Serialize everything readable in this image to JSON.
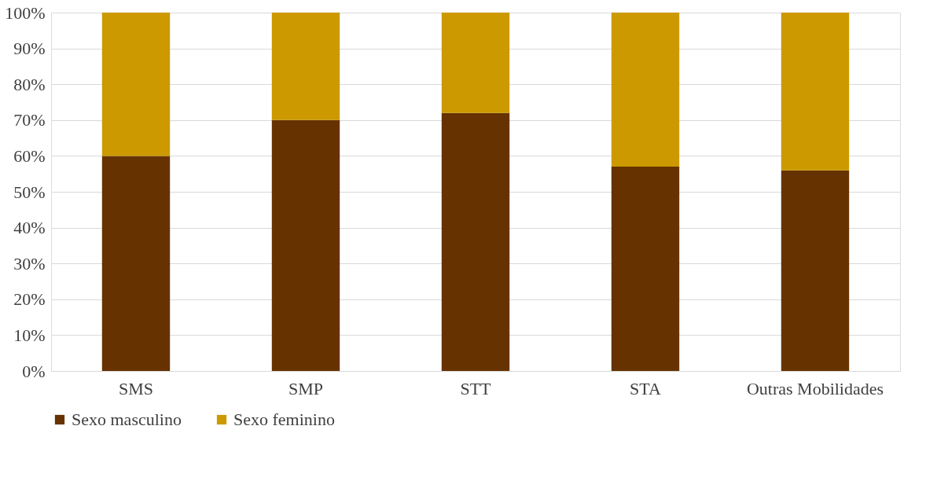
{
  "chart_data": {
    "type": "bar",
    "stacked": true,
    "categories": [
      "SMS",
      "SMP",
      "STT",
      "STA",
      "Outras Mobilidades"
    ],
    "series": [
      {
        "name": "Sexo masculino",
        "color": "#663300",
        "values": [
          60,
          70,
          72,
          57,
          56
        ]
      },
      {
        "name": "Sexo feminino",
        "color": "#cc9900",
        "values": [
          40,
          30,
          28,
          43,
          44
        ]
      }
    ],
    "ylim": [
      0,
      100
    ],
    "yticks": [
      {
        "value": 0,
        "label": "0%"
      },
      {
        "value": 10,
        "label": "10%"
      },
      {
        "value": 20,
        "label": "20%"
      },
      {
        "value": 30,
        "label": "30%"
      },
      {
        "value": 40,
        "label": "40%"
      },
      {
        "value": 50,
        "label": "50%"
      },
      {
        "value": 60,
        "label": "60%"
      },
      {
        "value": 70,
        "label": "70%"
      },
      {
        "value": 80,
        "label": "80%"
      },
      {
        "value": 90,
        "label": "90%"
      },
      {
        "value": 100,
        "label": "100%"
      }
    ],
    "grid": "y",
    "legend": "bottom"
  }
}
